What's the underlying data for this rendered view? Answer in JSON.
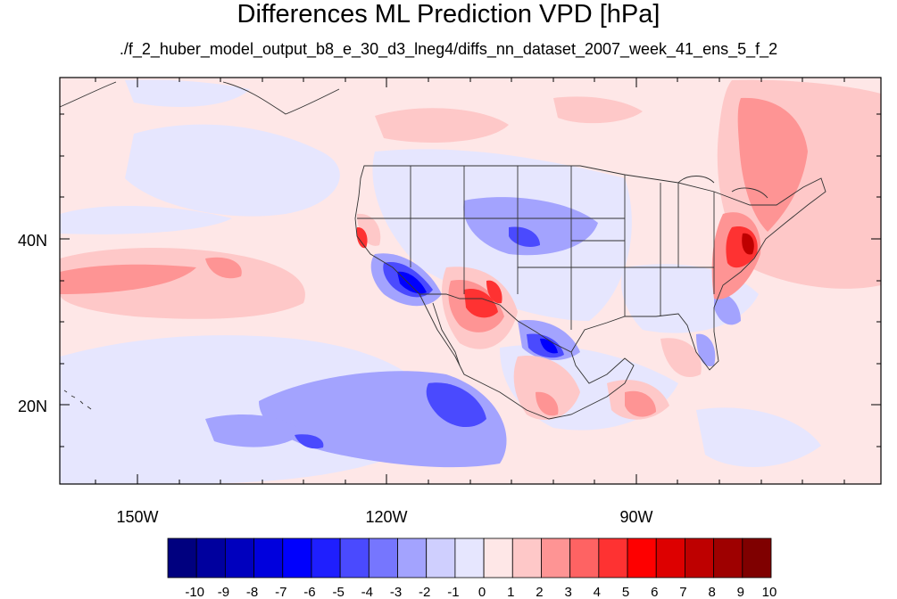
{
  "header": {
    "title": "Differences ML Prediction VPD [hPa]",
    "subtitle": "./f_2_huber_model_output_b8_e_30_d3_lneg4/diffs_nn_dataset_2007_week_41_ens_5_f_2"
  },
  "map": {
    "lat_labels": [
      "40N",
      "20N"
    ],
    "lon_labels": [
      "150W",
      "120W",
      "90W"
    ],
    "projection": "cylindrical equidistant",
    "extent": {
      "lon": [
        -160,
        -61
      ],
      "lat": [
        11,
        60
      ]
    }
  },
  "colorbar": {
    "labels": [
      "-10",
      "-9",
      "-8",
      "-7",
      "-6",
      "-5",
      "-4",
      "-3",
      "-2",
      "-1",
      "0",
      "1",
      "2",
      "3",
      "4",
      "5",
      "6",
      "7",
      "8",
      "9",
      "10"
    ],
    "colors": [
      "#00007f",
      "#00009e",
      "#0000be",
      "#0000dd",
      "#0000fd",
      "#1f1ffe",
      "#4a4afe",
      "#7676fe",
      "#a3a3fe",
      "#cfcffe",
      "#e6e6fe",
      "#fee7e7",
      "#fec8c8",
      "#fe9494",
      "#fe6363",
      "#fe3232",
      "#fe0000",
      "#dd0000",
      "#be0000",
      "#9e0000",
      "#7f0000"
    ]
  },
  "colors": {
    "background_anomaly": "#fee7e7",
    "neutral_negative": "#e6e6fe",
    "border_lines": "#333333"
  }
}
